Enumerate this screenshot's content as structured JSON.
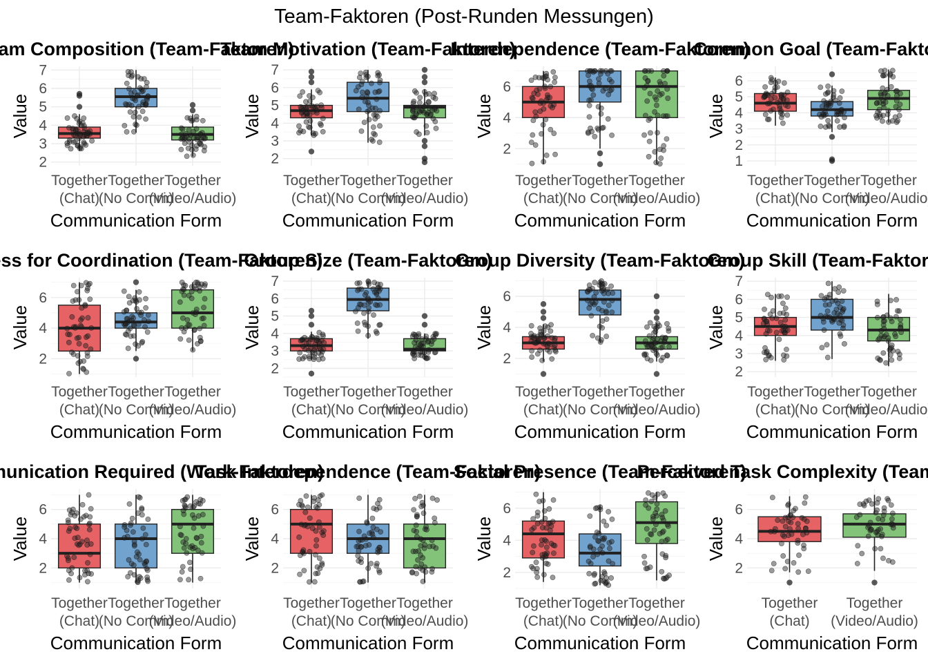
{
  "title": "Team-Faktoren (Post-Runden Messungen)",
  "colors": {
    "Together\n(Chat)": "#e55a5c",
    "Together\n(No Comm)": "#6a9ecb",
    "Together\n(Video/Audio)": "#7bbf72"
  },
  "chart_data": [
    {
      "type": "box",
      "title": "Team Composition (Team-Faktoren)",
      "xlabel": "Communication Form",
      "ylabel": "Value",
      "ylim": [
        1.8,
        7.2
      ],
      "yticks": [
        2,
        3,
        4,
        5,
        6,
        7
      ],
      "categories": [
        "Together\n(Chat)",
        "Together\n(No Comm)",
        "Together\n(Video/Audio)"
      ],
      "boxes": [
        {
          "q1": 3.3,
          "median": 3.55,
          "q3": 3.9,
          "lo": 2.6,
          "hi": 4.6,
          "out": [
            5.0,
            5.6,
            5.7
          ]
        },
        {
          "q1": 5.0,
          "median": 5.55,
          "q3": 6.0,
          "lo": 3.6,
          "hi": 7.0,
          "out": []
        },
        {
          "q1": 3.2,
          "median": 3.5,
          "q3": 3.9,
          "lo": 2.3,
          "hi": 4.6,
          "out": [
            4.8,
            5.1
          ]
        }
      ]
    },
    {
      "type": "box",
      "title": "Team Motivation (Team-Faktoren)",
      "xlabel": "Communication Form",
      "ylabel": "Value",
      "ylim": [
        1.6,
        7.2
      ],
      "yticks": [
        2,
        3,
        4,
        5,
        6,
        7
      ],
      "categories": [
        "Together\n(Chat)",
        "Together\n(No Comm)",
        "Together\n(Video/Audio)"
      ],
      "boxes": [
        {
          "q1": 4.3,
          "median": 4.7,
          "q3": 5.0,
          "lo": 3.3,
          "hi": 5.9,
          "out": [
            2.4,
            6.3,
            6.6,
            6.9
          ]
        },
        {
          "q1": 4.65,
          "median": 5.4,
          "q3": 6.3,
          "lo": 2.9,
          "hi": 7.0,
          "out": []
        },
        {
          "q1": 4.3,
          "median": 4.9,
          "q3": 5.0,
          "lo": 3.3,
          "hi": 5.9,
          "out": [
            1.8,
            2.0,
            2.7,
            3.0,
            6.3,
            6.6,
            7.0
          ]
        }
      ]
    },
    {
      "type": "box",
      "title": "Interdependence (Team-Faktoren)",
      "xlabel": "Communication Form",
      "ylabel": "Value",
      "ylim": [
        0.9,
        7.3
      ],
      "yticks": [
        2,
        4,
        6
      ],
      "categories": [
        "Together\n(Chat)",
        "Together\n(No Comm)",
        "Together\n(Video/Audio)"
      ],
      "boxes": [
        {
          "q1": 4.0,
          "median": 5.0,
          "q3": 6.0,
          "lo": 1.0,
          "hi": 7.0,
          "out": []
        },
        {
          "q1": 5.0,
          "median": 6.0,
          "q3": 7.0,
          "lo": 2.0,
          "hi": 7.0,
          "out": [
            1.0,
            1.7
          ]
        },
        {
          "q1": 4.0,
          "median": 6.0,
          "q3": 7.0,
          "lo": 1.0,
          "hi": 7.0,
          "out": []
        }
      ]
    },
    {
      "type": "box",
      "title": "Common Goal (Team-Faktoren)",
      "xlabel": "Communication Form",
      "ylabel": "Value",
      "ylim": [
        0.7,
        6.9
      ],
      "yticks": [
        1,
        2,
        3,
        4,
        5,
        6
      ],
      "categories": [
        "Together\n(Chat)",
        "Together\n(No Comm)",
        "Together\n(Video/Audio)"
      ],
      "boxes": [
        {
          "q1": 4.1,
          "median": 4.6,
          "q3": 5.2,
          "lo": 3.2,
          "hi": 6.2,
          "out": []
        },
        {
          "q1": 3.8,
          "median": 4.2,
          "q3": 4.7,
          "lo": 2.8,
          "hi": 5.7,
          "out": [
            1.0,
            1.1,
            2.5,
            6.4
          ]
        },
        {
          "q1": 4.2,
          "median": 4.9,
          "q3": 5.4,
          "lo": 3.4,
          "hi": 6.7,
          "out": []
        }
      ]
    },
    {
      "type": "box",
      "title": "Process for Coordination (Team-Faktoren)",
      "xlabel": "Communication Form",
      "ylabel": "Value",
      "ylim": [
        0.8,
        7.3
      ],
      "yticks": [
        2,
        4,
        6
      ],
      "categories": [
        "Together\n(Chat)",
        "Together\n(No Comm)",
        "Together\n(Video/Audio)"
      ],
      "boxes": [
        {
          "q1": 2.5,
          "median": 4.0,
          "q3": 5.5,
          "lo": 1.0,
          "hi": 7.0,
          "out": []
        },
        {
          "q1": 4.0,
          "median": 4.4,
          "q3": 5.0,
          "lo": 2.5,
          "hi": 6.5,
          "out": [
            2.0,
            7.0
          ]
        },
        {
          "q1": 4.0,
          "median": 5.0,
          "q3": 6.5,
          "lo": 2.5,
          "hi": 7.0,
          "out": []
        }
      ]
    },
    {
      "type": "box",
      "title": "Group Size (Team-Faktoren)",
      "xlabel": "Communication Form",
      "ylabel": "Value",
      "ylim": [
        1.5,
        7.2
      ],
      "yticks": [
        2,
        3,
        4,
        5,
        6,
        7
      ],
      "categories": [
        "Together\n(Chat)",
        "Together\n(No Comm)",
        "Together\n(Video/Audio)"
      ],
      "boxes": [
        {
          "q1": 3.0,
          "median": 3.3,
          "q3": 3.7,
          "lo": 2.5,
          "hi": 4.1,
          "out": [
            1.7,
            4.5,
            5.0,
            5.3
          ]
        },
        {
          "q1": 5.3,
          "median": 5.95,
          "q3": 6.6,
          "lo": 3.7,
          "hi": 7.0,
          "out": []
        },
        {
          "q1": 3.0,
          "median": 3.1,
          "q3": 3.7,
          "lo": 2.5,
          "hi": 4.0,
          "out": [
            4.5,
            5.0
          ]
        }
      ]
    },
    {
      "type": "box",
      "title": "Group Diversity (Team-Faktoren)",
      "xlabel": "Communication Form",
      "ylabel": "Value",
      "ylim": [
        0.8,
        7.2
      ],
      "yticks": [
        2,
        4,
        6
      ],
      "categories": [
        "Together\n(Chat)",
        "Together\n(No Comm)",
        "Together\n(Video/Audio)"
      ],
      "boxes": [
        {
          "q1": 2.6,
          "median": 3.0,
          "q3": 3.4,
          "lo": 1.8,
          "hi": 4.2,
          "out": [
            1.0,
            4.6,
            5.0,
            5.5
          ]
        },
        {
          "q1": 4.8,
          "median": 5.8,
          "q3": 6.4,
          "lo": 3.0,
          "hi": 7.0,
          "out": []
        },
        {
          "q1": 2.6,
          "median": 3.0,
          "q3": 3.4,
          "lo": 1.8,
          "hi": 4.3,
          "out": [
            1.0,
            4.6,
            5.0,
            6.0
          ]
        }
      ]
    },
    {
      "type": "box",
      "title": "Group Skill (Team-Faktoren)",
      "xlabel": "Communication Form",
      "ylabel": "Value",
      "ylim": [
        1.7,
        7.2
      ],
      "yticks": [
        2,
        3,
        4,
        5,
        6,
        7
      ],
      "categories": [
        "Together\n(Chat)",
        "Together\n(No Comm)",
        "Together\n(Video/Audio)"
      ],
      "boxes": [
        {
          "q1": 4.0,
          "median": 4.5,
          "q3": 5.0,
          "lo": 2.6,
          "hi": 6.3,
          "out": []
        },
        {
          "q1": 4.3,
          "median": 5.0,
          "q3": 6.0,
          "lo": 2.7,
          "hi": 7.0,
          "out": []
        },
        {
          "q1": 3.7,
          "median": 4.3,
          "q3": 5.0,
          "lo": 2.3,
          "hi": 6.3,
          "out": []
        }
      ]
    },
    {
      "type": "box",
      "title": "Communication Required (Work-Faktoren)",
      "xlabel": "Communication Form",
      "ylabel": "Value",
      "ylim": [
        0.6,
        7.4
      ],
      "yticks": [
        2,
        4,
        6
      ],
      "categories": [
        "Together\n(Chat)",
        "Together\n(No Comm)",
        "Together\n(Video/Audio)"
      ],
      "boxes": [
        {
          "q1": 2.0,
          "median": 3.0,
          "q3": 5.0,
          "lo": 1.0,
          "hi": 7.0,
          "out": []
        },
        {
          "q1": 2.0,
          "median": 4.0,
          "q3": 5.0,
          "lo": 1.0,
          "hi": 7.0,
          "out": []
        },
        {
          "q1": 3.0,
          "median": 5.0,
          "q3": 6.0,
          "lo": 1.0,
          "hi": 7.0,
          "out": []
        }
      ]
    },
    {
      "type": "box",
      "title": "Task Interdependence (Team-Faktoren)",
      "xlabel": "Communication Form",
      "ylabel": "Value",
      "ylim": [
        0.6,
        7.4
      ],
      "yticks": [
        2,
        4,
        6
      ],
      "categories": [
        "Together\n(Chat)",
        "Together\n(No Comm)",
        "Together\n(Video/Audio)"
      ],
      "boxes": [
        {
          "q1": 3.0,
          "median": 5.0,
          "q3": 6.0,
          "lo": 1.0,
          "hi": 7.0,
          "out": []
        },
        {
          "q1": 3.0,
          "median": 4.0,
          "q3": 5.0,
          "lo": 1.0,
          "hi": 7.0,
          "out": []
        },
        {
          "q1": 2.0,
          "median": 4.0,
          "q3": 5.0,
          "lo": 1.0,
          "hi": 7.0,
          "out": []
        }
      ]
    },
    {
      "type": "box",
      "title": "Social Presence (Team-Faktoren)",
      "xlabel": "Communication Form",
      "ylabel": "Value",
      "ylim": [
        1.0,
        7.2
      ],
      "yticks": [
        2,
        4,
        6
      ],
      "categories": [
        "Together\n(Chat)",
        "Together\n(No Comm)",
        "Together\n(Video/Audio)"
      ],
      "boxes": [
        {
          "q1": 2.9,
          "median": 4.4,
          "q3": 5.2,
          "lo": 1.4,
          "hi": 7.0,
          "out": []
        },
        {
          "q1": 2.4,
          "median": 3.2,
          "q3": 4.4,
          "lo": 1.2,
          "hi": 6.2,
          "out": []
        },
        {
          "q1": 3.8,
          "median": 5.1,
          "q3": 6.4,
          "lo": 1.5,
          "hi": 7.0,
          "out": []
        }
      ]
    },
    {
      "type": "box",
      "title": "Perceived Task Complexity (Team-Faktoren)",
      "xlabel": "Communication Form",
      "ylabel": "Value",
      "ylim": [
        0.6,
        7.4
      ],
      "yticks": [
        2,
        4,
        6
      ],
      "categories": [
        "Together\n(Chat)",
        "Together\n(Video/Audio)"
      ],
      "boxes": [
        {
          "q1": 3.8,
          "median": 4.5,
          "q3": 5.5,
          "lo": 1.7,
          "hi": 6.9,
          "out": [
            1.0
          ]
        },
        {
          "q1": 4.1,
          "median": 5.0,
          "q3": 5.7,
          "lo": 1.8,
          "hi": 7.0,
          "out": [
            1.0
          ]
        }
      ]
    }
  ]
}
